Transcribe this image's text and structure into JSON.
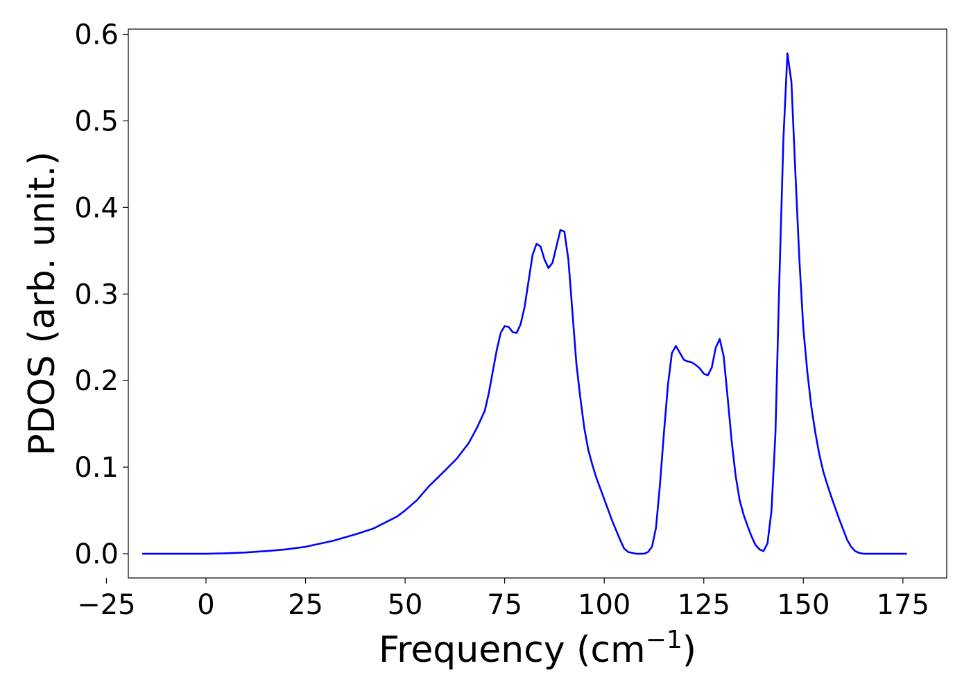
{
  "chart_data": {
    "type": "line",
    "title": "",
    "xlabel": "Frequency (cm",
    "xlabel_superscript": "−1",
    "xlabel_close": ")",
    "ylabel": "PDOS (arb. unit.)",
    "xlim": [
      -19.5,
      186
    ],
    "ylim": [
      -0.028,
      0.606
    ],
    "xticks": [
      -25,
      0,
      25,
      50,
      75,
      100,
      125,
      150,
      175
    ],
    "xtick_labels": [
      "−25",
      "0",
      "25",
      "50",
      "75",
      "100",
      "125",
      "150",
      "175"
    ],
    "yticks": [
      0.0,
      0.1,
      0.2,
      0.3,
      0.4,
      0.5,
      0.6
    ],
    "ytick_labels": [
      "0.0",
      "0.1",
      "0.2",
      "0.3",
      "0.4",
      "0.5",
      "0.6"
    ],
    "grid": false,
    "legend": "none",
    "series": [
      {
        "color": "#0000ff",
        "x": [
          -16,
          0,
          5,
          10,
          15,
          20,
          25,
          28,
          32,
          35,
          38,
          42,
          45,
          48,
          50,
          53,
          56,
          58,
          60,
          63,
          66,
          68,
          70,
          71,
          72,
          73,
          74,
          75,
          76,
          77,
          78,
          79,
          80,
          81,
          82,
          83,
          84,
          85,
          86,
          87,
          88,
          89,
          90,
          91,
          92,
          93,
          94,
          95,
          96,
          97,
          98,
          100,
          102,
          104,
          105,
          106,
          108,
          110,
          111,
          112,
          113,
          114,
          115,
          116,
          117,
          118,
          119,
          120,
          121,
          122,
          123,
          124,
          125,
          126,
          127,
          128,
          129,
          130,
          131,
          132,
          133,
          134,
          135,
          136,
          137,
          138,
          139,
          140,
          141,
          142,
          143,
          144,
          145,
          146,
          147,
          148,
          149,
          150,
          151,
          152,
          153,
          154,
          155,
          156,
          157,
          158,
          159,
          160,
          161,
          162,
          163,
          164,
          165,
          170,
          176
        ],
        "y": [
          0.0,
          0.0,
          0.0005,
          0.0015,
          0.003,
          0.005,
          0.008,
          0.011,
          0.015,
          0.019,
          0.023,
          0.029,
          0.036,
          0.043,
          0.05,
          0.062,
          0.078,
          0.087,
          0.096,
          0.11,
          0.128,
          0.145,
          0.165,
          0.185,
          0.21,
          0.235,
          0.255,
          0.263,
          0.262,
          0.256,
          0.255,
          0.265,
          0.285,
          0.315,
          0.345,
          0.358,
          0.355,
          0.34,
          0.33,
          0.336,
          0.355,
          0.374,
          0.372,
          0.34,
          0.28,
          0.22,
          0.18,
          0.145,
          0.12,
          0.103,
          0.088,
          0.063,
          0.038,
          0.016,
          0.006,
          0.002,
          0.0,
          0.0,
          0.002,
          0.008,
          0.03,
          0.08,
          0.14,
          0.195,
          0.232,
          0.24,
          0.232,
          0.224,
          0.222,
          0.221,
          0.218,
          0.214,
          0.208,
          0.206,
          0.215,
          0.238,
          0.248,
          0.228,
          0.18,
          0.13,
          0.09,
          0.062,
          0.045,
          0.032,
          0.02,
          0.01,
          0.005,
          0.003,
          0.012,
          0.05,
          0.14,
          0.32,
          0.48,
          0.578,
          0.545,
          0.44,
          0.34,
          0.26,
          0.21,
          0.17,
          0.14,
          0.115,
          0.095,
          0.08,
          0.066,
          0.053,
          0.04,
          0.028,
          0.016,
          0.008,
          0.003,
          0.001,
          0.0,
          0.0,
          0.0
        ]
      }
    ]
  }
}
